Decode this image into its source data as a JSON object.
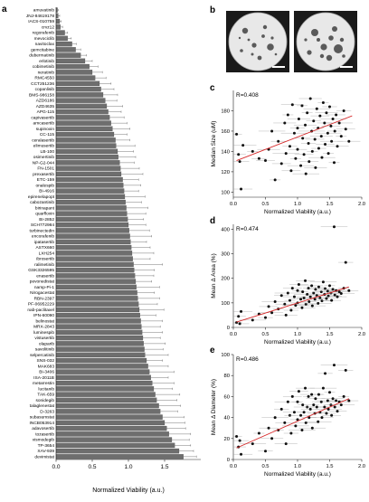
{
  "panels": {
    "a": "a",
    "b": "b",
    "c": "c",
    "d": "d",
    "e": "e"
  },
  "chart_data": [
    {
      "panel": "a",
      "type": "bar",
      "orientation": "horizontal",
      "xlabel": "Normalized Viability (a.u.)",
      "xlim": [
        0,
        2.0
      ],
      "xticks": [
        "0.0",
        "0.5",
        "1.0",
        "1.5"
      ],
      "categories": [
        "amuvatinib",
        "JNJ-84619178",
        "IACS-010759",
        "crvz12",
        "regorafenib",
        "mevociclib",
        "navitoclax",
        "gemcitabine",
        "dubermatinib",
        "erlotinib",
        "cobimetinib",
        "neratinib",
        "RMC4550",
        "CCT251236",
        "copanlisib",
        "BMS-986158",
        "AZD6186",
        "AZD4635",
        "APG-115",
        "capivasertib",
        "amcasertib",
        "supinoxin",
        "CC-115",
        "ceralasertib",
        "elimusertib",
        "LB-100",
        "osimertinib",
        "NP-G2-044",
        "FN-1501",
        "prexasertib",
        "ETC-159",
        "onalespib",
        "BI-4916",
        "epirenelapopt",
        "cabozantinib",
        "birinapant",
        "quarfloxin",
        "BI-2852",
        "SCH772984",
        "turbinectedin",
        "encorafenib",
        "ipatasertib",
        "ASTX660",
        "LXH254",
        "ibrosertib",
        "ralimetinib",
        "GSK3326595",
        "enasertib",
        "pevonedistat",
        "namp-Pi-1",
        "Nirogacestat",
        "RBN-2397",
        "PF-06952229",
        "nab-paclitaxel",
        "IPN-60090",
        "belinostat",
        "MRX-2843",
        "luminespib",
        "vistusertib",
        "olaparib",
        "savolitinib",
        "selpercatinib",
        "SNS-032",
        "MAK683",
        "BI-3406",
        "ISA-2011B",
        "metarrestin",
        "lucitanib",
        "TAK-659",
        "sonidegib",
        "talaglenestat",
        "D-3263",
        "subasumstat",
        "INCB053914",
        "adavosertib",
        "tozasertib",
        "vismodegib",
        "TP-3654",
        "XAV-939",
        "devimistat"
      ],
      "values": [
        0.02,
        0.03,
        0.05,
        0.06,
        0.12,
        0.16,
        0.22,
        0.27,
        0.34,
        0.4,
        0.46,
        0.5,
        0.54,
        0.6,
        0.62,
        0.65,
        0.68,
        0.7,
        0.72,
        0.74,
        0.76,
        0.78,
        0.8,
        0.82,
        0.83,
        0.85,
        0.86,
        0.88,
        0.89,
        0.9,
        0.92,
        0.93,
        0.94,
        0.95,
        0.96,
        0.97,
        0.98,
        0.99,
        1.0,
        1.01,
        1.02,
        1.03,
        1.04,
        1.05,
        1.06,
        1.07,
        1.08,
        1.09,
        1.1,
        1.11,
        1.12,
        1.13,
        1.14,
        1.15,
        1.16,
        1.17,
        1.18,
        1.19,
        1.2,
        1.21,
        1.22,
        1.23,
        1.25,
        1.27,
        1.29,
        1.31,
        1.33,
        1.35,
        1.37,
        1.39,
        1.42,
        1.44,
        1.47,
        1.5,
        1.53,
        1.56,
        1.6,
        1.64,
        1.7,
        1.76
      ],
      "errors": [
        0.01,
        0.02,
        0.02,
        0.03,
        0.04,
        0.05,
        0.06,
        0.07,
        0.08,
        0.1,
        0.12,
        0.14,
        0.15,
        0.16,
        0.18,
        0.2,
        0.16,
        0.22,
        0.18,
        0.2,
        0.22,
        0.24,
        0.18,
        0.2,
        0.26,
        0.22,
        0.24,
        0.2,
        0.26,
        0.3,
        0.22,
        0.24,
        0.2,
        0.28,
        0.22,
        0.3,
        0.26,
        0.22,
        0.24,
        0.28,
        0.3,
        0.22,
        0.26,
        0.3,
        0.24,
        0.4,
        0.28,
        0.26,
        0.22,
        0.32,
        0.24,
        0.3,
        0.26,
        0.34,
        0.22,
        0.3,
        0.26,
        0.28,
        0.24,
        0.3,
        0.26,
        0.32,
        0.22,
        0.28,
        0.34,
        0.24,
        0.3,
        0.26,
        0.34,
        0.28,
        0.3,
        0.24,
        0.3,
        0.28,
        0.26,
        0.3,
        0.24,
        0.22,
        0.2,
        0.18
      ]
    },
    {
      "panel": "c",
      "type": "scatter",
      "annotation": "R=0.408",
      "xlabel": "Normalized Viability (a.u.)",
      "ylabel": "Median Size (uM)",
      "xlim": [
        0,
        2.0
      ],
      "ylim": [
        95,
        200
      ],
      "xticks": [
        "0.0",
        "0.5",
        "1.0",
        "1.5",
        "2.0"
      ],
      "yticks": [
        "100",
        "120",
        "140",
        "160",
        "180"
      ],
      "fit": {
        "x": [
          0.05,
          1.85
        ],
        "y": [
          131,
          175
        ]
      },
      "points": [
        {
          "x": 0.05,
          "y": 157
        },
        {
          "x": 0.08,
          "y": 137
        },
        {
          "x": 0.1,
          "y": 130
        },
        {
          "x": 0.12,
          "y": 103
        },
        {
          "x": 0.15,
          "y": 146
        },
        {
          "x": 0.3,
          "y": 140
        },
        {
          "x": 0.4,
          "y": 133
        },
        {
          "x": 0.5,
          "y": 131
        },
        {
          "x": 0.55,
          "y": 142
        },
        {
          "x": 0.6,
          "y": 160
        },
        {
          "x": 0.65,
          "y": 112
        },
        {
          "x": 0.7,
          "y": 150
        },
        {
          "x": 0.75,
          "y": 128
        },
        {
          "x": 0.8,
          "y": 168
        },
        {
          "x": 0.82,
          "y": 138
        },
        {
          "x": 0.85,
          "y": 176
        },
        {
          "x": 0.88,
          "y": 145
        },
        {
          "x": 0.9,
          "y": 121
        },
        {
          "x": 0.92,
          "y": 186
        },
        {
          "x": 0.95,
          "y": 158
        },
        {
          "x": 0.97,
          "y": 133
        },
        {
          "x": 1.0,
          "y": 163
        },
        {
          "x": 1.0,
          "y": 142
        },
        {
          "x": 1.02,
          "y": 172
        },
        {
          "x": 1.05,
          "y": 126
        },
        {
          "x": 1.07,
          "y": 185
        },
        {
          "x": 1.08,
          "y": 153
        },
        {
          "x": 1.1,
          "y": 137
        },
        {
          "x": 1.12,
          "y": 166
        },
        {
          "x": 1.13,
          "y": 118
        },
        {
          "x": 1.15,
          "y": 178
        },
        {
          "x": 1.17,
          "y": 148
        },
        {
          "x": 1.18,
          "y": 130
        },
        {
          "x": 1.2,
          "y": 192
        },
        {
          "x": 1.22,
          "y": 160
        },
        {
          "x": 1.23,
          "y": 140
        },
        {
          "x": 1.25,
          "y": 170
        },
        {
          "x": 1.27,
          "y": 152
        },
        {
          "x": 1.28,
          "y": 124
        },
        {
          "x": 1.3,
          "y": 182
        },
        {
          "x": 1.32,
          "y": 163
        },
        {
          "x": 1.33,
          "y": 143
        },
        {
          "x": 1.35,
          "y": 175
        },
        {
          "x": 1.37,
          "y": 155
        },
        {
          "x": 1.38,
          "y": 134
        },
        {
          "x": 1.4,
          "y": 188
        },
        {
          "x": 1.42,
          "y": 168
        },
        {
          "x": 1.43,
          "y": 147
        },
        {
          "x": 1.45,
          "y": 178
        },
        {
          "x": 1.47,
          "y": 158
        },
        {
          "x": 1.48,
          "y": 138
        },
        {
          "x": 1.5,
          "y": 184
        },
        {
          "x": 1.52,
          "y": 165
        },
        {
          "x": 1.53,
          "y": 150
        },
        {
          "x": 1.55,
          "y": 172
        },
        {
          "x": 1.57,
          "y": 129
        },
        {
          "x": 1.58,
          "y": 160
        },
        {
          "x": 1.6,
          "y": 176
        },
        {
          "x": 1.62,
          "y": 145
        },
        {
          "x": 1.65,
          "y": 168
        },
        {
          "x": 1.68,
          "y": 155
        },
        {
          "x": 1.72,
          "y": 180
        },
        {
          "x": 1.75,
          "y": 162
        },
        {
          "x": 1.8,
          "y": 150
        }
      ]
    },
    {
      "panel": "d",
      "type": "scatter",
      "annotation": "R=0.474",
      "xlabel": "Normalized Viability (a.u.)",
      "ylabel": "Mean Δ Area (%)",
      "xlim": [
        0,
        2.0
      ],
      "ylim": [
        0,
        420
      ],
      "xticks": [
        "0.0",
        "0.5",
        "1.0",
        "1.5",
        "2.0"
      ],
      "yticks": [
        "0",
        "100",
        "200",
        "300",
        "400"
      ],
      "fit": {
        "x": [
          0.05,
          1.8
        ],
        "y": [
          22,
          165
        ]
      },
      "points": [
        {
          "x": 0.05,
          "y": 20
        },
        {
          "x": 0.08,
          "y": 45
        },
        {
          "x": 0.1,
          "y": 15
        },
        {
          "x": 0.12,
          "y": 65
        },
        {
          "x": 0.3,
          "y": 30
        },
        {
          "x": 0.4,
          "y": 55
        },
        {
          "x": 0.5,
          "y": 40
        },
        {
          "x": 0.55,
          "y": 85
        },
        {
          "x": 0.6,
          "y": 60
        },
        {
          "x": 0.65,
          "y": 105
        },
        {
          "x": 0.7,
          "y": 75
        },
        {
          "x": 0.75,
          "y": 130
        },
        {
          "x": 0.8,
          "y": 95
        },
        {
          "x": 0.82,
          "y": 50
        },
        {
          "x": 0.85,
          "y": 140
        },
        {
          "x": 0.88,
          "y": 110
        },
        {
          "x": 0.9,
          "y": 70
        },
        {
          "x": 0.92,
          "y": 160
        },
        {
          "x": 0.95,
          "y": 125
        },
        {
          "x": 0.97,
          "y": 90
        },
        {
          "x": 1.0,
          "y": 150
        },
        {
          "x": 1.0,
          "y": 100
        },
        {
          "x": 1.02,
          "y": 175
        },
        {
          "x": 1.05,
          "y": 115
        },
        {
          "x": 1.07,
          "y": 80
        },
        {
          "x": 1.08,
          "y": 145
        },
        {
          "x": 1.1,
          "y": 120
        },
        {
          "x": 1.12,
          "y": 190
        },
        {
          "x": 1.13,
          "y": 95
        },
        {
          "x": 1.15,
          "y": 135
        },
        {
          "x": 1.17,
          "y": 160
        },
        {
          "x": 1.18,
          "y": 105
        },
        {
          "x": 1.2,
          "y": 125
        },
        {
          "x": 1.22,
          "y": 170
        },
        {
          "x": 1.23,
          "y": 88
        },
        {
          "x": 1.25,
          "y": 140
        },
        {
          "x": 1.27,
          "y": 115
        },
        {
          "x": 1.28,
          "y": 155
        },
        {
          "x": 1.3,
          "y": 130
        },
        {
          "x": 1.32,
          "y": 98
        },
        {
          "x": 1.33,
          "y": 165
        },
        {
          "x": 1.35,
          "y": 120
        },
        {
          "x": 1.37,
          "y": 145
        },
        {
          "x": 1.38,
          "y": 108
        },
        {
          "x": 1.4,
          "y": 185
        },
        {
          "x": 1.42,
          "y": 135
        },
        {
          "x": 1.43,
          "y": 158
        },
        {
          "x": 1.45,
          "y": 118
        },
        {
          "x": 1.47,
          "y": 148
        },
        {
          "x": 1.48,
          "y": 128
        },
        {
          "x": 1.5,
          "y": 170
        },
        {
          "x": 1.52,
          "y": 140
        },
        {
          "x": 1.53,
          "y": 110
        },
        {
          "x": 1.55,
          "y": 155
        },
        {
          "x": 1.57,
          "y": 410
        },
        {
          "x": 1.58,
          "y": 132
        },
        {
          "x": 1.6,
          "y": 150
        },
        {
          "x": 1.62,
          "y": 125
        },
        {
          "x": 1.65,
          "y": 145
        },
        {
          "x": 1.68,
          "y": 138
        },
        {
          "x": 1.72,
          "y": 160
        },
        {
          "x": 1.75,
          "y": 265
        },
        {
          "x": 1.8,
          "y": 150
        }
      ]
    },
    {
      "panel": "e",
      "type": "scatter",
      "annotation": "R=0.486",
      "xlabel": "Normalized Viability (a.u.)",
      "ylabel": "Mean Δ Diameter (%)",
      "xlim": [
        0,
        2.0
      ],
      "ylim": [
        0,
        100
      ],
      "xticks": [
        "0.0",
        "0.5",
        "1.0",
        "1.5",
        "2.0"
      ],
      "yticks": [
        "0",
        "20",
        "40",
        "60",
        "80",
        "100"
      ],
      "fit": {
        "x": [
          0.05,
          1.8
        ],
        "y": [
          11,
          58
        ]
      },
      "points": [
        {
          "x": 0.05,
          "y": 22
        },
        {
          "x": 0.08,
          "y": 12
        },
        {
          "x": 0.1,
          "y": 18
        },
        {
          "x": 0.12,
          "y": 5
        },
        {
          "x": 0.3,
          "y": 15
        },
        {
          "x": 0.4,
          "y": 25
        },
        {
          "x": 0.5,
          "y": 8
        },
        {
          "x": 0.55,
          "y": 30
        },
        {
          "x": 0.6,
          "y": 20
        },
        {
          "x": 0.65,
          "y": 40
        },
        {
          "x": 0.7,
          "y": 28
        },
        {
          "x": 0.75,
          "y": 48
        },
        {
          "x": 0.8,
          "y": 35
        },
        {
          "x": 0.82,
          "y": 15
        },
        {
          "x": 0.85,
          "y": 55
        },
        {
          "x": 0.88,
          "y": 42
        },
        {
          "x": 0.9,
          "y": 25
        },
        {
          "x": 0.92,
          "y": 60
        },
        {
          "x": 0.95,
          "y": 45
        },
        {
          "x": 0.97,
          "y": 32
        },
        {
          "x": 1.0,
          "y": 55
        },
        {
          "x": 1.0,
          "y": 38
        },
        {
          "x": 1.02,
          "y": 65
        },
        {
          "x": 1.05,
          "y": 42
        },
        {
          "x": 1.07,
          "y": 28
        },
        {
          "x": 1.08,
          "y": 52
        },
        {
          "x": 1.1,
          "y": 45
        },
        {
          "x": 1.12,
          "y": 68
        },
        {
          "x": 1.13,
          "y": 35
        },
        {
          "x": 1.15,
          "y": 50
        },
        {
          "x": 1.17,
          "y": 60
        },
        {
          "x": 1.18,
          "y": 40
        },
        {
          "x": 1.2,
          "y": 48
        },
        {
          "x": 1.22,
          "y": 62
        },
        {
          "x": 1.23,
          "y": 30
        },
        {
          "x": 1.25,
          "y": 52
        },
        {
          "x": 1.27,
          "y": 44
        },
        {
          "x": 1.28,
          "y": 58
        },
        {
          "x": 1.3,
          "y": 50
        },
        {
          "x": 1.32,
          "y": 36
        },
        {
          "x": 1.33,
          "y": 62
        },
        {
          "x": 1.35,
          "y": 45
        },
        {
          "x": 1.37,
          "y": 55
        },
        {
          "x": 1.38,
          "y": 40
        },
        {
          "x": 1.4,
          "y": 68
        },
        {
          "x": 1.42,
          "y": 50
        },
        {
          "x": 1.43,
          "y": 82
        },
        {
          "x": 1.45,
          "y": 44
        },
        {
          "x": 1.47,
          "y": 56
        },
        {
          "x": 1.48,
          "y": 48
        },
        {
          "x": 1.5,
          "y": 64
        },
        {
          "x": 1.52,
          "y": 52
        },
        {
          "x": 1.53,
          "y": 42
        },
        {
          "x": 1.55,
          "y": 58
        },
        {
          "x": 1.57,
          "y": 90
        },
        {
          "x": 1.58,
          "y": 50
        },
        {
          "x": 1.6,
          "y": 56
        },
        {
          "x": 1.62,
          "y": 46
        },
        {
          "x": 1.65,
          "y": 55
        },
        {
          "x": 1.68,
          "y": 52
        },
        {
          "x": 1.72,
          "y": 60
        },
        {
          "x": 1.75,
          "y": 85
        },
        {
          "x": 1.8,
          "y": 56
        }
      ]
    }
  ],
  "colors": {
    "bar": "#6e6e6e",
    "fit": "#d62728",
    "point": "#111111",
    "axis": "#222222",
    "well": "#e6e6e6",
    "spheroid": "#5a5a5a",
    "scalebar": "#ffffff"
  }
}
